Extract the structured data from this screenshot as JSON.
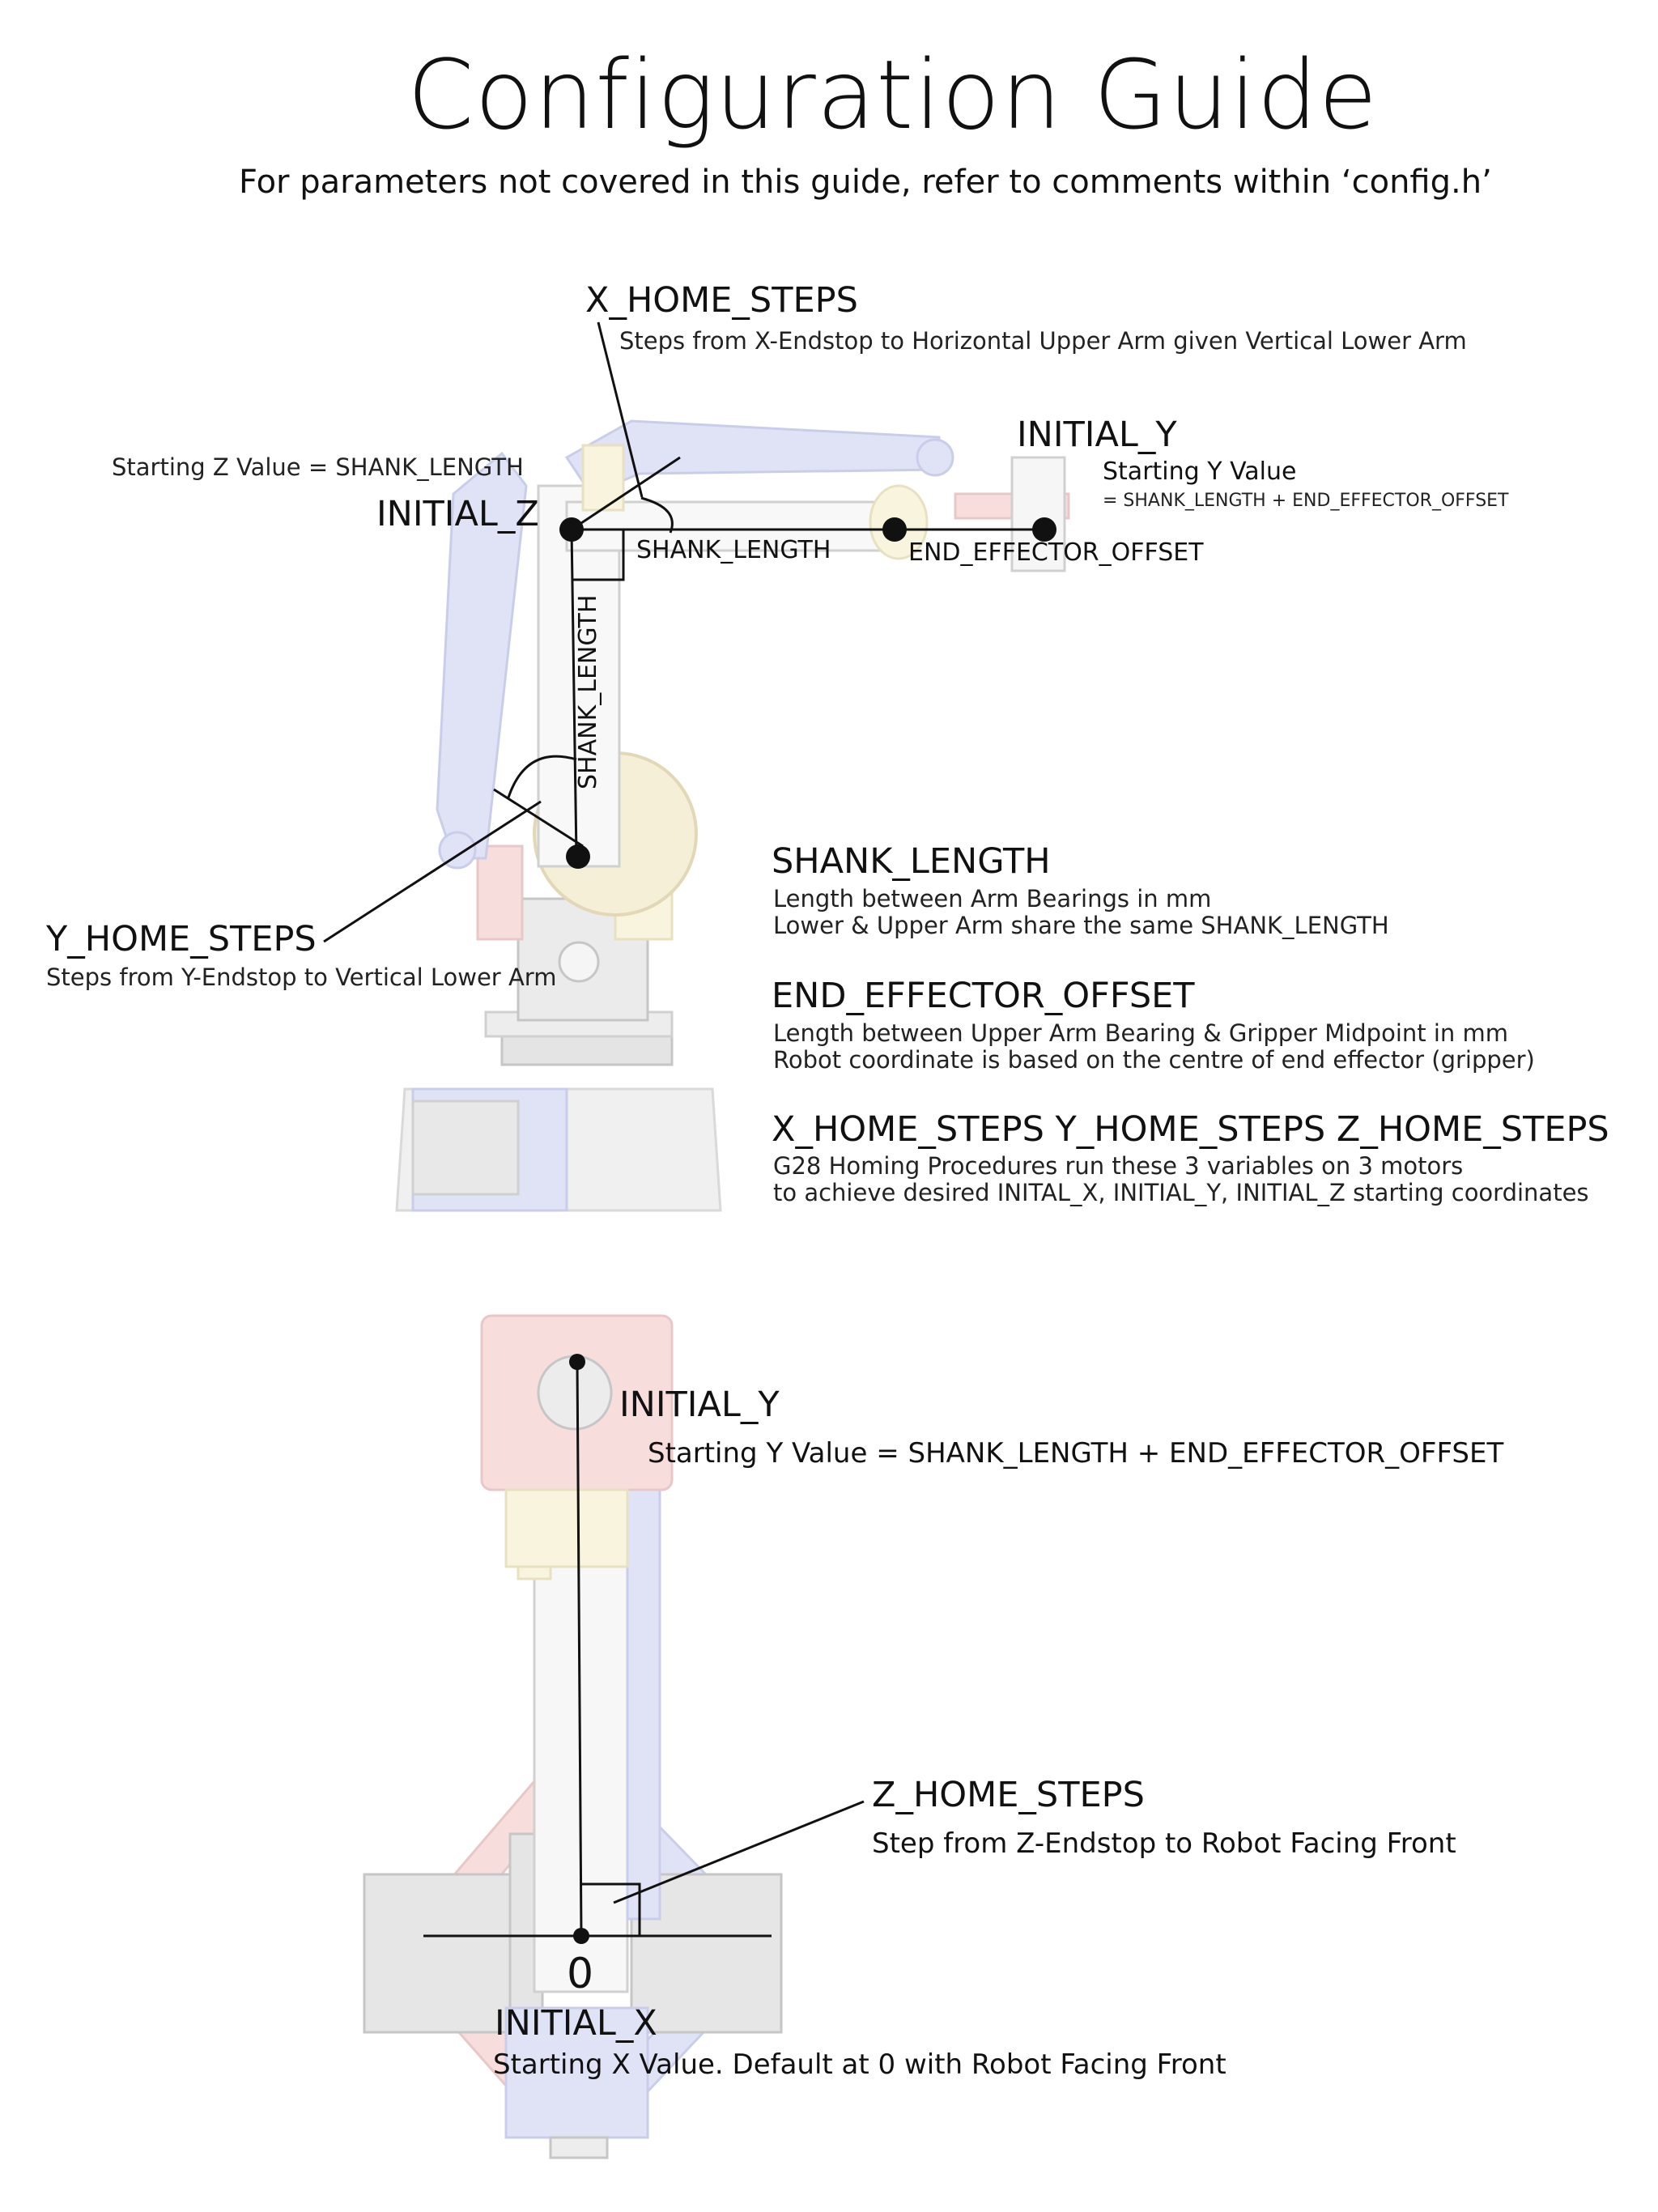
{
  "header": {
    "title": "Configuration Guide",
    "subtitle": "For parameters not covered in this guide, refer to comments within ‘config.h’"
  },
  "side_view": {
    "x_home_steps": {
      "label": "X_HOME_STEPS",
      "desc": "Steps from X-Endstop to Horizontal Upper Arm given Vertical Lower Arm"
    },
    "starting_z": "Starting Z Value = SHANK_LENGTH",
    "initial_z": "INITIAL_Z",
    "initial_y": {
      "label": "INITIAL_Y",
      "desc": "Starting Y Value",
      "desc2": "= SHANK_LENGTH + END_EFFECTOR_OFFSET"
    },
    "shank_length_h": "SHANK_LENGTH",
    "end_effector_offset": "END_EFFECTOR_OFFSET",
    "shank_length_v": "SHANK_LENGTH",
    "y_home_steps": {
      "label": "Y_HOME_STEPS",
      "desc": "Steps from Y-Endstop to Vertical Lower Arm"
    }
  },
  "definitions": {
    "shank": {
      "heading": "SHANK_LENGTH",
      "line1": "Length between Arm Bearings in mm",
      "line2": "Lower & Upper Arm share the same SHANK_LENGTH"
    },
    "offset": {
      "heading": "END_EFFECTOR_OFFSET",
      "line1": "Length between Upper Arm Bearing & Gripper Midpoint in mm",
      "line2": "Robot coordinate is based on the centre of end effector (gripper)"
    },
    "homing": {
      "heading": "X_HOME_STEPS  Y_HOME_STEPS  Z_HOME_STEPS",
      "line1": "G28 Homing Procedures run these 3 variables on 3 motors",
      "line2": "to achieve desired INITAL_X, INITIAL_Y, INITIAL_Z starting coordinates"
    }
  },
  "top_view": {
    "initial_y": {
      "label": "INITIAL_Y",
      "desc": "Starting Y Value = SHANK_LENGTH + END_EFFECTOR_OFFSET"
    },
    "z_home_steps": {
      "label": "Z_HOME_STEPS",
      "desc": "Step from Z-Endstop to Robot Facing Front"
    },
    "origin": "0",
    "initial_x": {
      "label": "INITIAL_X",
      "desc": "Starting X Value. Default at 0 with Robot Facing Front"
    }
  },
  "colors": {
    "ink": "#111111",
    "blue_part": "#c7cdf0",
    "red_part": "#f3c3c3",
    "yellow_part": "#f5ecc4",
    "gray_part": "#e4e4e4",
    "gear_gold": "#efe2b8"
  }
}
